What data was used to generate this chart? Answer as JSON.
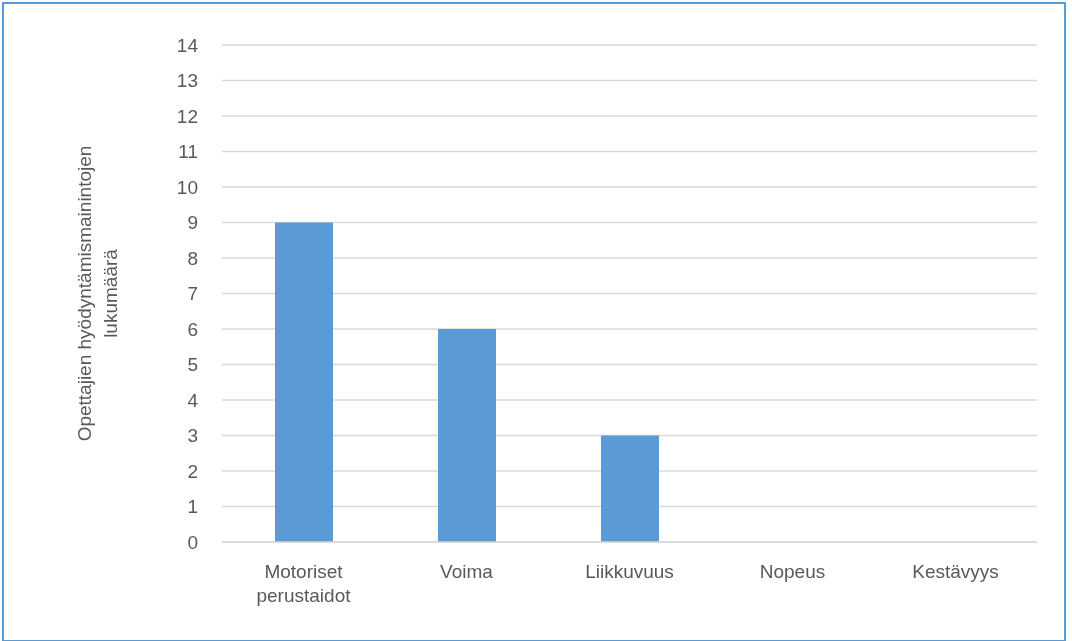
{
  "chart_data": {
    "type": "bar",
    "ylabel": "Opettajien hyödyntämismainintojen lukumäärä",
    "categories": [
      "Motoriset perustaidot",
      "Voima",
      "Liikkuvuus",
      "Nopeus",
      "Kestävyys"
    ],
    "values": [
      9,
      6,
      3,
      0,
      0
    ],
    "color": "#5b9bd5",
    "ylim": [
      0,
      14
    ],
    "yticks": [
      0,
      1,
      2,
      3,
      4,
      5,
      6,
      7,
      8,
      9,
      10,
      11,
      12,
      13,
      14
    ],
    "grid": "y"
  }
}
